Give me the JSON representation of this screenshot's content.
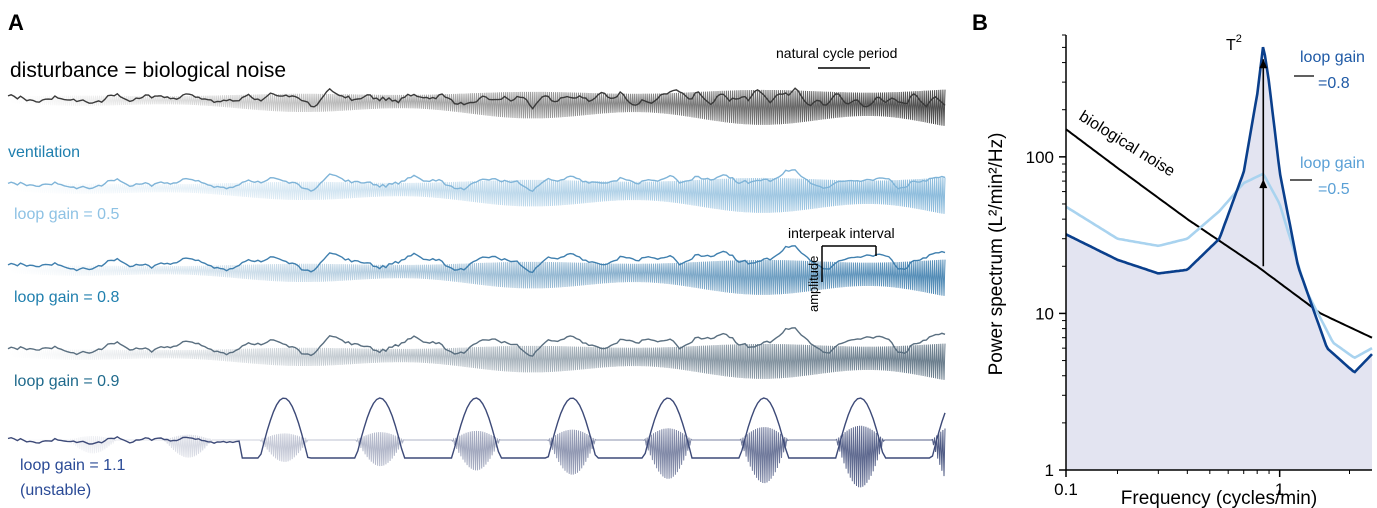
{
  "panel_a": {
    "panel_letter": "A",
    "title": "disturbance = biological noise",
    "period_label": "natural cycle period",
    "interpeak_label": "interpeak interval",
    "amplitude_label": "amplitude",
    "ventilation_label": "ventilation",
    "traces": [
      {
        "label": "",
        "color": "#3a3a3a",
        "gain": 0.0
      },
      {
        "label": "loop gain = 0.5",
        "color": "#7fb4d8",
        "gain": 0.5
      },
      {
        "label": "loop gain = 0.8",
        "color": "#3f7fae",
        "gain": 0.8
      },
      {
        "label": "loop gain = 0.9",
        "color": "#5a6f80",
        "gain": 0.9
      },
      {
        "label": "loop gain = 1.1",
        "label2": "(unstable)",
        "color": "#3d4a78",
        "gain": 1.1
      }
    ],
    "label_colors": [
      "#1f7fae",
      "#8ec2e4",
      "#1f7fae",
      "#1f6a8c",
      "#2a4a96"
    ]
  },
  "panel_b": {
    "panel_letter": "B",
    "ylabel": "Power spectrum (L²/min²/Hz)",
    "xlabel": "Frequency (cycles/min)",
    "y_tick_labels": [
      "1",
      "10",
      "100"
    ],
    "x_tick_labels": [
      "0.1",
      "1"
    ],
    "noise_label": "biological noise",
    "t2_label": "T",
    "t2_sup": "2",
    "label_08_line1": "loop gain",
    "label_08_line2": "=0.8",
    "label_05_line1": "loop gain",
    "label_05_line2": "=0.5"
  },
  "chart_data": {
    "type": "line",
    "x_scale": "log",
    "y_scale": "log",
    "xlim": [
      0.12,
      2.5
    ],
    "ylim": [
      1,
      600
    ],
    "xlabel": "Frequency (cycles/min)",
    "ylabel": "Power spectrum (L²/min²/Hz)",
    "series": [
      {
        "name": "biological noise",
        "color": "#000000",
        "x": [
          0.12,
          0.2,
          0.4,
          0.8,
          1.5,
          2.5
        ],
        "y": [
          150,
          85,
          40,
          20,
          10,
          7
        ]
      },
      {
        "name": "loop gain =0.5",
        "color": "#a9d3ef",
        "x": [
          0.12,
          0.2,
          0.3,
          0.4,
          0.55,
          0.7,
          0.85,
          1.0,
          1.3,
          1.7,
          2.1,
          2.5
        ],
        "y": [
          48,
          30,
          27,
          30,
          45,
          68,
          78,
          50,
          14,
          6.5,
          5.2,
          6
        ]
      },
      {
        "name": "loop gain =0.8",
        "color": "#0a3f8c",
        "x": [
          0.12,
          0.2,
          0.3,
          0.4,
          0.55,
          0.7,
          0.8,
          0.85,
          0.9,
          1.0,
          1.2,
          1.6,
          2.1,
          2.5
        ],
        "y": [
          32,
          22,
          18,
          19,
          30,
          80,
          250,
          520,
          300,
          80,
          20,
          6,
          4.2,
          5.5
        ]
      }
    ]
  }
}
